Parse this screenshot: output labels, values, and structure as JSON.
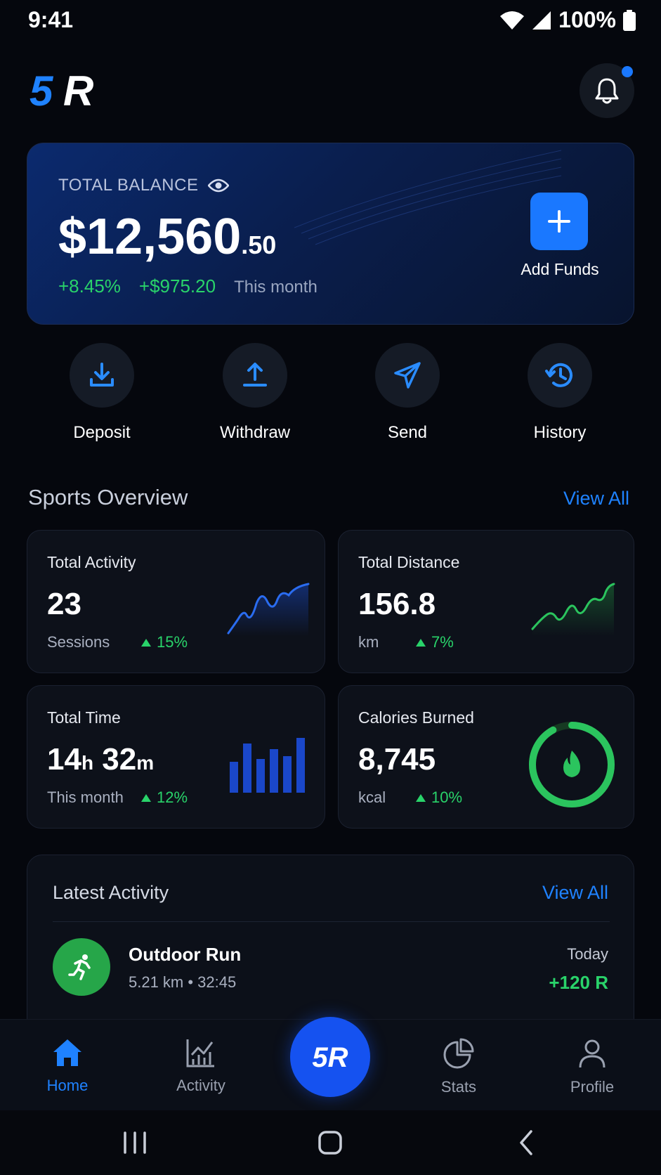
{
  "status_bar": {
    "time": "9:41",
    "battery": "100%"
  },
  "header": {
    "logo_text": "5R",
    "notification_badge": true
  },
  "balance": {
    "label": "TOTAL BALANCE",
    "amount_main": "$12,560",
    "amount_cents": ".50",
    "change_pct": "+8.45%",
    "change_amount": "+$975.20",
    "period": "This month",
    "add_funds_label": "Add Funds"
  },
  "actions": [
    {
      "label": "Deposit",
      "icon": "download-icon"
    },
    {
      "label": "Withdraw",
      "icon": "upload-icon"
    },
    {
      "label": "Send",
      "icon": "send-icon"
    },
    {
      "label": "History",
      "icon": "history-icon"
    }
  ],
  "sports_overview": {
    "title": "Sports Overview",
    "view_all": "View All",
    "cards": [
      {
        "title": "Total Activity",
        "value": "23",
        "sub": "Sessions",
        "change": "15%"
      },
      {
        "title": "Total Distance",
        "value": "156.8",
        "sub": "km",
        "change": "7%"
      },
      {
        "title": "Total Time",
        "hours": "14",
        "hours_unit": "h",
        "minutes": "32",
        "minutes_unit": "m",
        "sub": "This month",
        "change": "12%"
      },
      {
        "title": "Calories Burned",
        "value": "8,745",
        "sub": "kcal",
        "change": "10%",
        "ring_progress": 0.92
      }
    ]
  },
  "latest_activity": {
    "title": "Latest Activity",
    "view_all": "View All",
    "items": [
      {
        "name": "Outdoor Run",
        "meta": "5.21 km • 32:45",
        "date": "Today",
        "reward": "+120 R"
      }
    ]
  },
  "bottom_nav": {
    "items": [
      {
        "label": "Home",
        "active": true
      },
      {
        "label": "Activity"
      },
      {
        "label": "Stats"
      },
      {
        "label": "Profile"
      }
    ],
    "center_label": "5R"
  },
  "colors": {
    "accent": "#1a78ff",
    "positive": "#29d36a",
    "background": "#05070d"
  }
}
